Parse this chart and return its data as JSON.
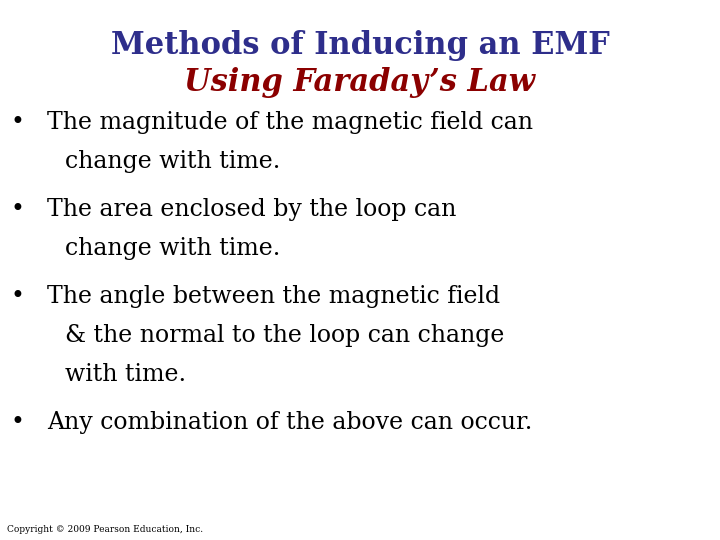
{
  "title_line1": "Methods of Inducing an EMF",
  "title_line2": "Using Faraday’s Law",
  "title_line1_color": "#2E2E8B",
  "title_line2_color": "#8B0000",
  "background_color": "#FFFFFF",
  "bullet_items": [
    [
      "The magnitude of the magnetic field can",
      "change with time."
    ],
    [
      "The area enclosed by the loop can",
      "change with time."
    ],
    [
      "The angle between the magnetic field",
      "& the normal to the loop can change",
      "with time."
    ],
    [
      "Any combination of the above can occur."
    ]
  ],
  "bullet_color": "#000000",
  "copyright_text": "Copyright © 2009 Pearson Education, Inc.",
  "title_fontsize": 22,
  "bullet_fontsize": 17,
  "copyright_fontsize": 6.5,
  "fig_width": 7.2,
  "fig_height": 5.4,
  "fig_dpi": 100
}
